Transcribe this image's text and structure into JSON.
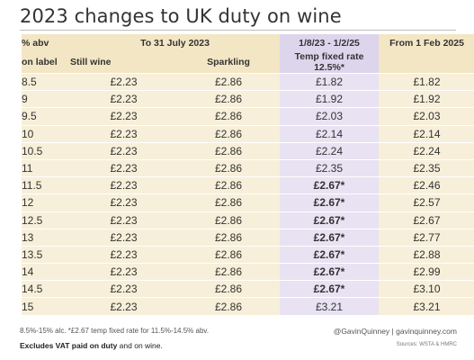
{
  "title": "2023 changes to UK duty on wine",
  "header": {
    "row1": {
      "abv": "% abv",
      "period_old": "To 31 July 2023",
      "period_temp": "1/8/23 - 1/2/25",
      "period_new": "From 1 Feb 2025"
    },
    "row2": {
      "abv": "on label",
      "still": "Still wine",
      "sparkling": "Sparkling",
      "temp": "Temp fixed rate 12.5%*"
    }
  },
  "rows": [
    {
      "abv": "8.5",
      "still": "£2.23",
      "sparkling": "£2.86",
      "temp": "£1.82",
      "temp_bold": false,
      "new": "£1.82"
    },
    {
      "abv": "9",
      "still": "£2.23",
      "sparkling": "£2.86",
      "temp": "£1.92",
      "temp_bold": false,
      "new": "£1.92"
    },
    {
      "abv": "9.5",
      "still": "£2.23",
      "sparkling": "£2.86",
      "temp": "£2.03",
      "temp_bold": false,
      "new": "£2.03"
    },
    {
      "abv": "10",
      "still": "£2.23",
      "sparkling": "£2.86",
      "temp": "£2.14",
      "temp_bold": false,
      "new": "£2.14"
    },
    {
      "abv": "10.5",
      "still": "£2.23",
      "sparkling": "£2.86",
      "temp": "£2.24",
      "temp_bold": false,
      "new": "£2.24"
    },
    {
      "abv": "11",
      "still": "£2.23",
      "sparkling": "£2.86",
      "temp": "£2.35",
      "temp_bold": false,
      "new": "£2.35"
    },
    {
      "abv": "11.5",
      "still": "£2.23",
      "sparkling": "£2.86",
      "temp": "£2.67*",
      "temp_bold": true,
      "new": "£2.46"
    },
    {
      "abv": "12",
      "still": "£2.23",
      "sparkling": "£2.86",
      "temp": "£2.67*",
      "temp_bold": true,
      "new": "£2.57"
    },
    {
      "abv": "12.5",
      "still": "£2.23",
      "sparkling": "£2.86",
      "temp": "£2.67*",
      "temp_bold": true,
      "new": "£2.67"
    },
    {
      "abv": "13",
      "still": "£2.23",
      "sparkling": "£2.86",
      "temp": "£2.67*",
      "temp_bold": true,
      "new": "£2.77"
    },
    {
      "abv": "13.5",
      "still": "£2.23",
      "sparkling": "£2.86",
      "temp": "£2.67*",
      "temp_bold": true,
      "new": "£2.88"
    },
    {
      "abv": "14",
      "still": "£2.23",
      "sparkling": "£2.86",
      "temp": "£2.67*",
      "temp_bold": true,
      "new": "£2.99"
    },
    {
      "abv": "14.5",
      "still": "£2.23",
      "sparkling": "£2.86",
      "temp": "£2.67*",
      "temp_bold": true,
      "new": "£3.10"
    },
    {
      "abv": "15",
      "still": "£2.23",
      "sparkling": "£2.86",
      "temp": "£3.21",
      "temp_bold": false,
      "new": "£3.21"
    }
  ],
  "footnote": "8.5%-15% alc.  *£2.67 temp fixed rate for 11.5%-14.5% abv.",
  "vat_note": {
    "bold": "Excludes VAT paid on duty",
    "rest": " and on wine."
  },
  "credit": "@GavinQuinney  |  gavinquinney.com",
  "sources": "Sources: WSTA & HMRC",
  "colors": {
    "beige_cell": "#f7efd9",
    "purple_cell": "#e8e2f2"
  }
}
